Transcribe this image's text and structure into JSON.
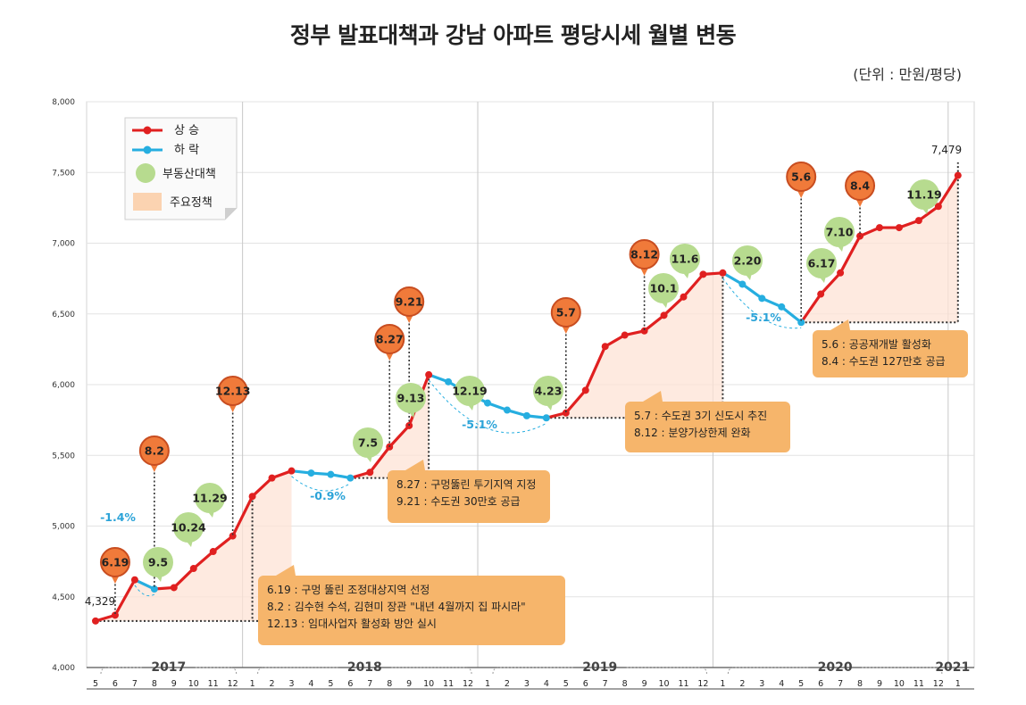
{
  "title": "정부 발표대책과 강남 아파트 평당시세 월별 변동",
  "unit": "(단위 : 만원/평당)",
  "colors": {
    "rise": "#e02020",
    "fall": "#26aee0",
    "bubble_green": "#b7db8f",
    "bubble_red": "#f07a3a",
    "note_box": "#f6b56b",
    "area_fill": "#fde3d5"
  },
  "legend": {
    "rise": "상 승",
    "fall": "하 락",
    "measure": "부동산대책",
    "policy": "주요정책"
  },
  "chart_data": {
    "type": "line",
    "y_ticks": [
      "4,000",
      "4,500",
      "5,000",
      "5,500",
      "6,000",
      "6,500",
      "7,000",
      "7,500",
      "8,000"
    ],
    "ylim": [
      4000,
      8000
    ],
    "months": [
      "5",
      "6",
      "7",
      "8",
      "9",
      "10",
      "11",
      "12",
      "1",
      "2",
      "3",
      "4",
      "5",
      "6",
      "7",
      "8",
      "9",
      "10",
      "11",
      "12",
      "1",
      "2",
      "3",
      "4",
      "5",
      "6",
      "7",
      "8",
      "9",
      "10",
      "11",
      "12",
      "1",
      "2",
      "3",
      "4",
      "5",
      "6",
      "7",
      "8",
      "9",
      "10",
      "11",
      "12",
      "1"
    ],
    "years": [
      "2017",
      "2018",
      "2019",
      "2020",
      "2021"
    ],
    "values": [
      4329,
      4370,
      4620,
      4555,
      4565,
      4700,
      4820,
      4930,
      5210,
      5340,
      5390,
      5375,
      5365,
      5340,
      5380,
      5560,
      5710,
      6070,
      6020,
      5940,
      5870,
      5820,
      5780,
      5765,
      5800,
      5960,
      6270,
      6350,
      6380,
      6490,
      6620,
      6780,
      6790,
      6710,
      6610,
      6550,
      6440,
      6640,
      6790,
      7050,
      7110,
      7110,
      7160,
      7260,
      7479
    ],
    "falling_segments": [
      [
        2,
        3
      ],
      [
        10,
        13
      ],
      [
        17,
        23
      ],
      [
        32,
        36
      ]
    ],
    "start_label": "4,329",
    "end_label": "7,479",
    "drop_labels": [
      "-1.4%",
      "-0.9%",
      "-5.1%",
      "-5.1%"
    ],
    "red_bubbles": [
      "6.19",
      "8.2",
      "12.13",
      "8.27",
      "9.21",
      "5.7",
      "8.12",
      "5.6",
      "8.4"
    ],
    "green_bubbles": [
      "9.5",
      "10.24",
      "11.29",
      "7.5",
      "9.13",
      "12.19",
      "4.23",
      "10.1",
      "11.6",
      "2.20",
      "6.17",
      "7.10",
      "11.19"
    ],
    "notes": [
      [
        "6.19 : 구멍 뚫린 조정대상지역 선정",
        "8.2 : 김수현 수석, 김현미 장관 \"내년 4월까지 집 파시라\"",
        "12.13 : 임대사업자 활성화 방안 실시"
      ],
      [
        "8.27 : 구멍뚫린 투기지역 지정",
        "9.21 : 수도권 30만호 공급"
      ],
      [
        "5.7 : 수도권 3기 신도시 추진",
        "8.12 : 분양가상한제 완화"
      ],
      [
        "5.6 : 공공재개발 활성화",
        "8.4 : 수도권 127만호 공급"
      ]
    ]
  }
}
